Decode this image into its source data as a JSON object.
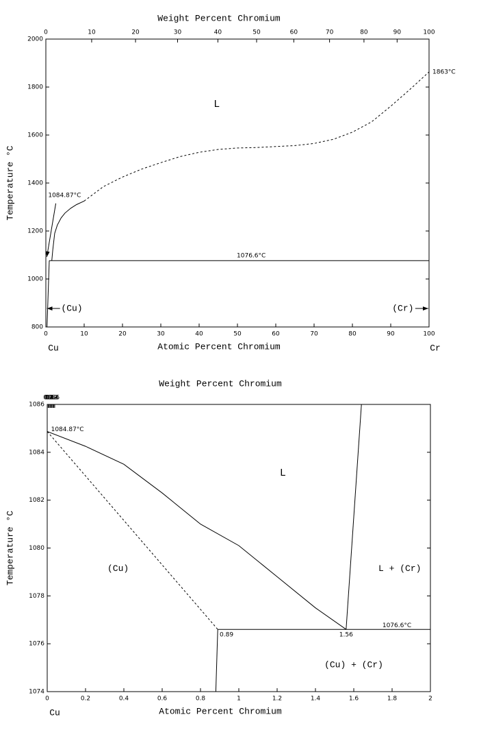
{
  "chart_data": [
    {
      "type": "line",
      "x2label": "Weight Percent Chromium",
      "xlabel": "Atomic Percent Chromium",
      "ylabel": "Temperature °C",
      "x_end_labels": [
        "Cu",
        "Cr"
      ],
      "xlim": [
        0,
        100
      ],
      "xticks": [
        0,
        10,
        20,
        30,
        40,
        50,
        60,
        70,
        80,
        90,
        100
      ],
      "x2ticks": [
        0,
        10,
        20,
        30,
        40,
        50,
        60,
        70,
        80,
        90,
        100
      ],
      "ylim": [
        800,
        2000
      ],
      "yticks": [
        800,
        1000,
        1200,
        1400,
        1600,
        1800,
        2000
      ],
      "series": [
        {
          "color": "#000000",
          "dash": false,
          "x": [
            1.56,
            1.8,
            2.3,
            3,
            4,
            5,
            6.5,
            8,
            10
          ],
          "values": [
            1076.6,
            1120,
            1190,
            1225,
            1255,
            1275,
            1295,
            1310,
            1325
          ]
        },
        {
          "color": "#000000",
          "dash": true,
          "x": [
            10,
            15,
            20,
            25,
            30,
            35,
            40,
            45,
            50,
            55,
            60,
            65,
            70,
            75,
            80,
            85,
            90,
            95,
            100
          ],
          "values": [
            1325,
            1385,
            1425,
            1458,
            1485,
            1510,
            1528,
            1540,
            1546,
            1548,
            1552,
            1556,
            1565,
            1582,
            1612,
            1655,
            1720,
            1790,
            1863
          ]
        },
        {
          "color": "#000000",
          "dash": false,
          "x": [
            0.89,
            100
          ],
          "values": [
            1076.6,
            1076.6
          ]
        },
        {
          "color": "#000000",
          "dash": false,
          "x": [
            0.89,
            0.3
          ],
          "values": [
            1076.6,
            800
          ]
        }
      ],
      "annotations": [
        "1084.87°C",
        "L",
        "1076.6°C",
        "1863°C",
        "(Cu)",
        "(Cr)"
      ]
    },
    {
      "type": "line",
      "x2label": "Weight Percent Chromium",
      "xlabel": "Atomic Percent Chromium",
      "ylabel": "Temperature °C",
      "x_end_labels": [
        "Cu"
      ],
      "xlim": [
        0,
        2
      ],
      "xticks": [
        0,
        0.2,
        0.4,
        0.6,
        0.8,
        1,
        1.2,
        1.4,
        1.6,
        1.8,
        2
      ],
      "x2ticks": [
        0,
        0.2,
        0.4,
        0.6,
        0.8,
        1,
        1.2,
        1.4,
        1.6
      ],
      "ylim": [
        1074,
        1086
      ],
      "yticks": [
        1074,
        1076,
        1078,
        1080,
        1082,
        1084,
        1086
      ],
      "series": [
        {
          "color": "#000000",
          "dash": false,
          "x": [
            0,
            0.2,
            0.4,
            0.6,
            0.8,
            1,
            1.2,
            1.4,
            1.56
          ],
          "values": [
            1084.87,
            1084.25,
            1083.5,
            1082.3,
            1081,
            1080.1,
            1078.8,
            1077.5,
            1076.6
          ]
        },
        {
          "color": "#000000",
          "dash": true,
          "x": [
            0,
            0.89
          ],
          "values": [
            1084.87,
            1076.6
          ]
        },
        {
          "color": "#000000",
          "dash": false,
          "x": [
            0.89,
            0.88
          ],
          "values": [
            1076.6,
            1074
          ]
        },
        {
          "color": "#000000",
          "dash": false,
          "x": [
            0.89,
            2
          ],
          "values": [
            1076.6,
            1076.6
          ]
        },
        {
          "color": "#000000",
          "dash": false,
          "x": [
            1.56,
            1.64
          ],
          "values": [
            1076.6,
            1086
          ]
        }
      ],
      "annotations": [
        "1084.87°C",
        "L",
        "(Cu)",
        "L + (Cr)",
        "0.89",
        "1.56",
        "1076.6°C",
        "(Cu) + (Cr)"
      ]
    }
  ]
}
